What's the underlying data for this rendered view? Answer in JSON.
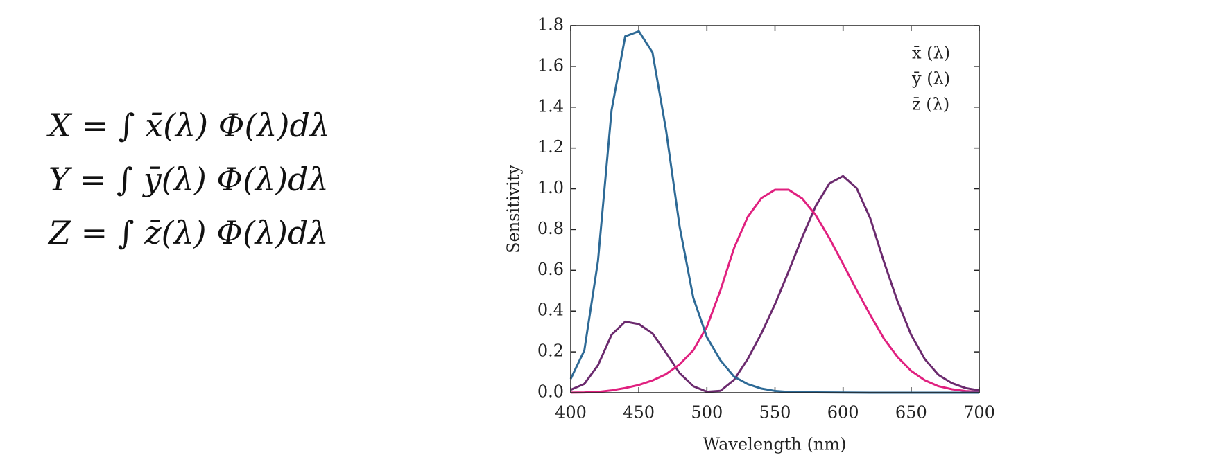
{
  "equations": [
    "X = ∫ x̄(λ) Φ(λ)dλ",
    "Y = ∫ ȳ(λ) Φ(λ)dλ",
    "Z = ∫ z̄(λ) Φ(λ)dλ"
  ],
  "chart_data": {
    "type": "line",
    "xlabel": "Wavelength (nm)",
    "ylabel": "Sensitivity",
    "x": [
      400,
      410,
      420,
      430,
      440,
      450,
      460,
      470,
      480,
      490,
      500,
      510,
      520,
      530,
      540,
      550,
      560,
      570,
      580,
      590,
      600,
      610,
      620,
      630,
      640,
      650,
      660,
      670,
      680,
      690,
      700
    ],
    "series": [
      {
        "name": "x̄ (λ)",
        "color": "#6b2a6e",
        "values": [
          0.0143,
          0.0435,
          0.1344,
          0.2839,
          0.3483,
          0.3362,
          0.2908,
          0.1954,
          0.0956,
          0.032,
          0.0049,
          0.0093,
          0.0633,
          0.1655,
          0.2904,
          0.4334,
          0.5945,
          0.7621,
          0.9163,
          1.0263,
          1.0622,
          1.0026,
          0.8544,
          0.6424,
          0.4479,
          0.2835,
          0.1649,
          0.0874,
          0.0468,
          0.0227,
          0.0114
        ]
      },
      {
        "name": "ȳ (λ)",
        "color": "#e0207f",
        "values": [
          0.0004,
          0.0012,
          0.004,
          0.0116,
          0.023,
          0.038,
          0.06,
          0.091,
          0.139,
          0.208,
          0.323,
          0.503,
          0.71,
          0.862,
          0.954,
          0.995,
          0.995,
          0.952,
          0.87,
          0.757,
          0.631,
          0.503,
          0.381,
          0.265,
          0.175,
          0.107,
          0.061,
          0.032,
          0.017,
          0.0082,
          0.0041
        ]
      },
      {
        "name": "z̄ (λ)",
        "color": "#2e6a96",
        "values": [
          0.0679,
          0.2074,
          0.6456,
          1.3856,
          1.7471,
          1.7721,
          1.6692,
          1.2876,
          0.813,
          0.4652,
          0.272,
          0.1582,
          0.0782,
          0.0422,
          0.0203,
          0.0087,
          0.0039,
          0.0021,
          0.0017,
          0.0011,
          0.0008,
          0.0003,
          0.0002,
          0,
          0,
          0,
          0,
          0,
          0,
          0,
          0
        ]
      }
    ],
    "xlim": [
      400,
      700
    ],
    "xticks": [
      400,
      450,
      500,
      550,
      600,
      650,
      700
    ],
    "ylim": [
      0,
      1.8
    ],
    "yticks": [
      {
        "value": 0,
        "label": "0.0"
      },
      0.2,
      0.4,
      0.6,
      0.8,
      {
        "value": 1,
        "label": "1.0"
      },
      1.2,
      1.4,
      1.6,
      1.8
    ],
    "legend": "upper right"
  }
}
